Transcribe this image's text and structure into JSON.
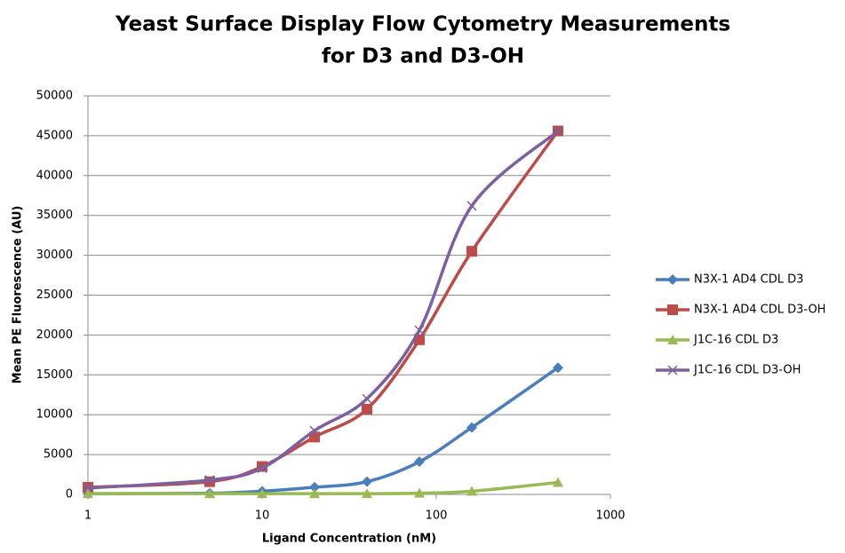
{
  "chart_data": {
    "type": "line",
    "title": [
      "Yeast Surface Display Flow Cytometry Measurements",
      "for D3 and D3-OH"
    ],
    "x_label": "Ligand Concentration (nM)",
    "y_label": "Mean PE Fluorescence (AU)",
    "x": [
      1,
      5,
      10,
      20,
      40,
      80,
      160,
      500
    ],
    "xscale": "log",
    "xlim": [
      1,
      1000
    ],
    "xticks": [
      1,
      10,
      100,
      1000
    ],
    "ylim": [
      0,
      50000
    ],
    "yticks": [
      0,
      5000,
      10000,
      15000,
      20000,
      25000,
      30000,
      35000,
      40000,
      45000,
      50000
    ],
    "grid": true,
    "smooth": true,
    "legend": "right",
    "series": [
      {
        "name": "N3X-1 AD4 CDL D3",
        "color": "#4a7ebb",
        "marker": "diamond",
        "values": [
          100,
          150,
          400,
          900,
          1600,
          4100,
          8400,
          15900
        ]
      },
      {
        "name": "N3X-1 AD4 CDL D3-OH",
        "color": "#be4b48",
        "marker": "square",
        "values": [
          900,
          1600,
          3500,
          7200,
          10700,
          19400,
          30500,
          45600
        ]
      },
      {
        "name": "J1C-16 CDL D3",
        "color": "#98b954",
        "marker": "triangle",
        "values": [
          100,
          100,
          100,
          100,
          100,
          150,
          400,
          1500
        ]
      },
      {
        "name": "J1C-16 CDL D3-OH",
        "color": "#7d60a0",
        "marker": "x",
        "values": [
          800,
          1800,
          3300,
          8000,
          12000,
          20600,
          36200,
          45600
        ]
      }
    ]
  }
}
